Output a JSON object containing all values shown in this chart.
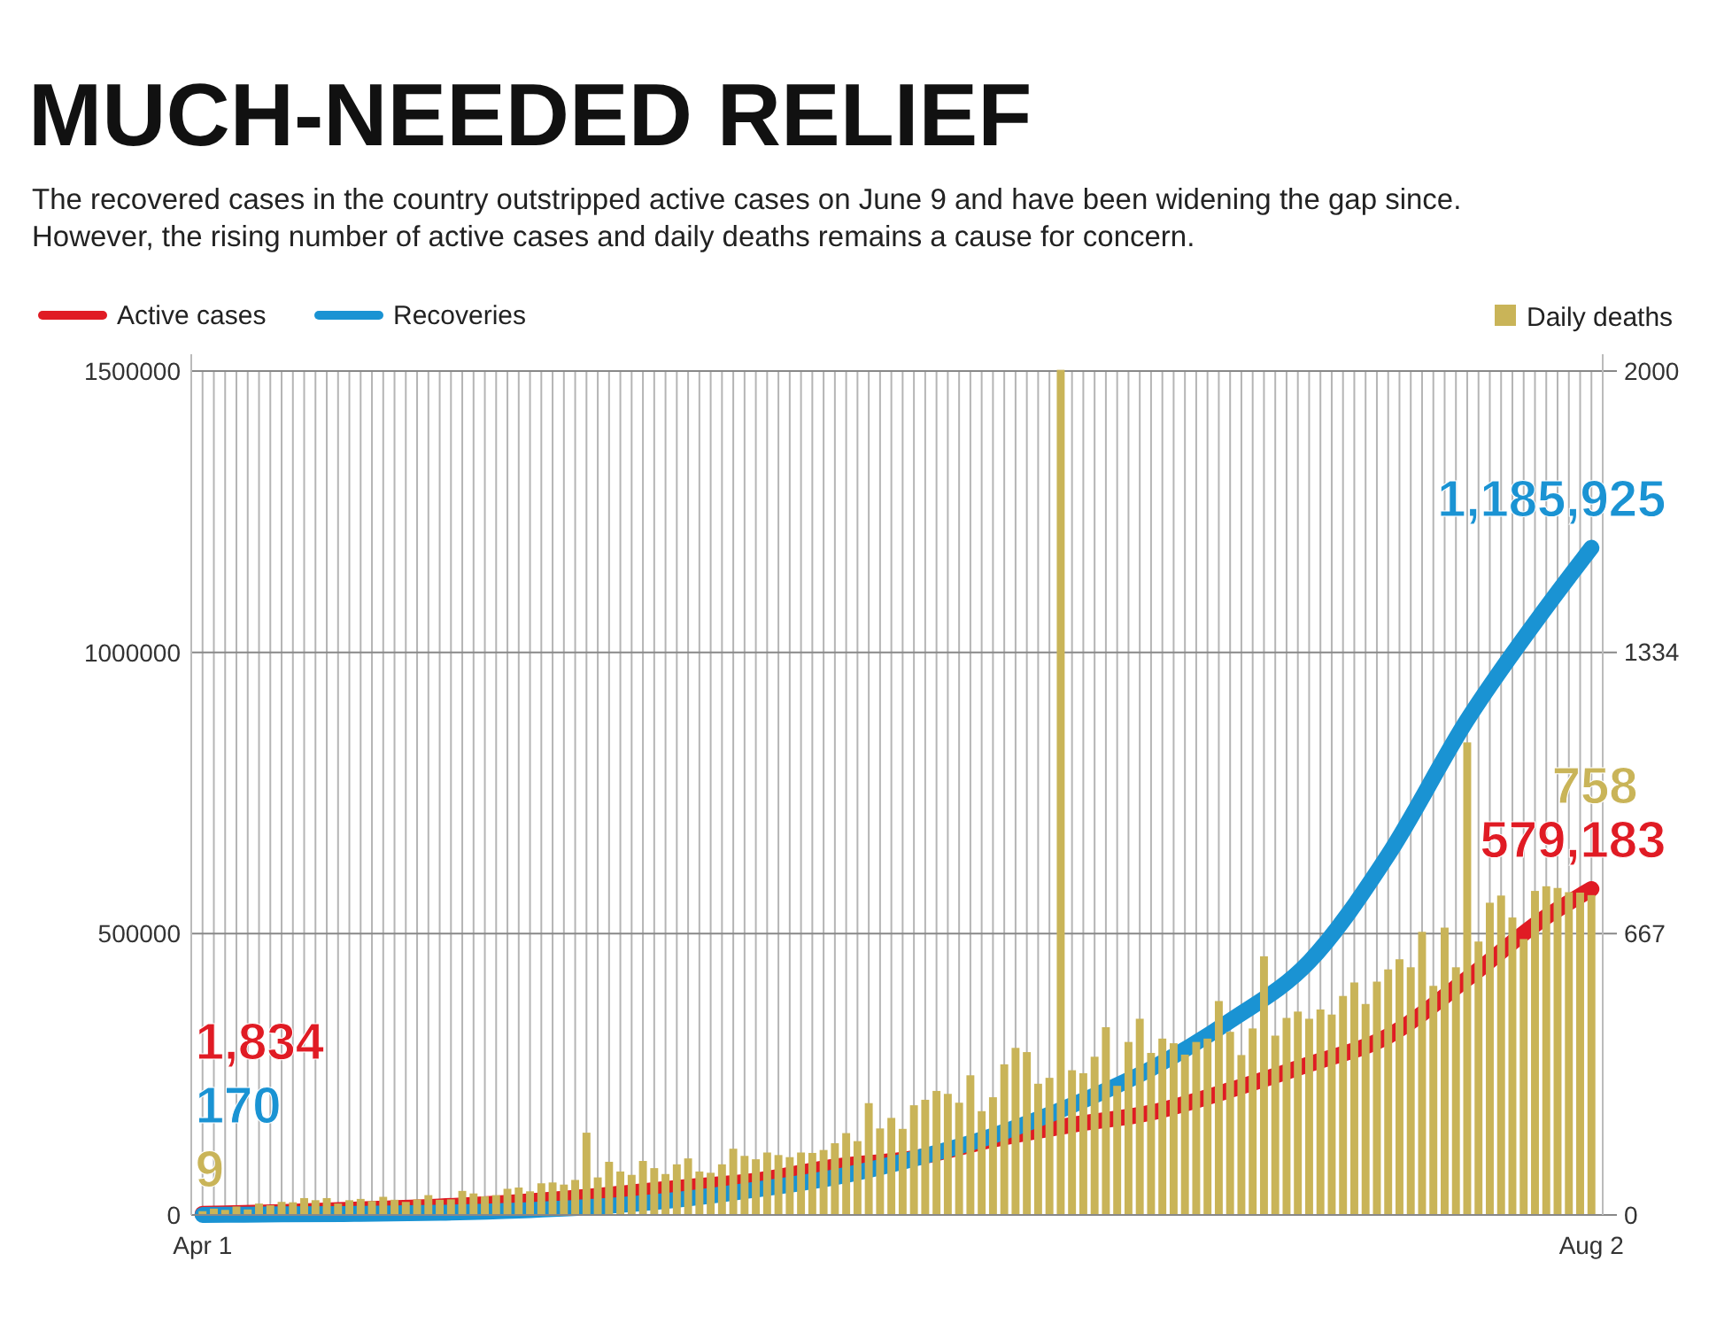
{
  "chart_data": {
    "type": "line",
    "title": "MUCH-NEEDED RELIEF",
    "subtitle": "The recovered cases in the country outstripped active cases on June 9 and have been widening the gap since. However, the rising number of active cases and daily deaths remains a cause for concern.",
    "xlim": [
      "--03-31",
      "--08-03"
    ],
    "xticks": [
      {
        "value": "--04-01",
        "label": "Apr 1"
      },
      {
        "value": "--08-02",
        "label": "Aug 2"
      }
    ],
    "ylim": [
      0,
      1530000
    ],
    "yticks": [
      0,
      500000,
      1000000,
      1500000
    ],
    "y2lim": [
      0,
      2040
    ],
    "y2ticks": [
      0,
      667,
      1334,
      2000
    ],
    "grid": true,
    "legend": "top",
    "series": [
      {
        "name": "Active cases",
        "color": "#e01b24",
        "x": [
          "--04-01",
          "--04-08",
          "--04-15",
          "--04-22",
          "--04-29",
          "--05-06",
          "--05-13",
          "--05-20",
          "--05-27",
          "--06-03",
          "--06-10",
          "--06-17",
          "--06-24",
          "--07-01",
          "--07-08",
          "--07-15",
          "--07-22",
          "--07-29",
          "--08-02"
        ],
        "values": [
          1834,
          5000,
          10000,
          15000,
          23000,
          34000,
          48000,
          61000,
          86000,
          101000,
          134000,
          160000,
          182000,
          222000,
          268000,
          318000,
          420000,
          530000,
          579183
        ],
        "value_labels": [
          "1,834",
          null,
          null,
          null,
          null,
          null,
          null,
          null,
          null,
          null,
          null,
          null,
          null,
          null,
          null,
          null,
          null,
          null,
          "579,183"
        ]
      },
      {
        "name": "Recoveries",
        "color": "#1a93d3",
        "x": [
          "--04-01",
          "--04-08",
          "--04-15",
          "--04-22",
          "--04-29",
          "--05-06",
          "--05-13",
          "--05-20",
          "--05-27",
          "--06-03",
          "--06-10",
          "--06-17",
          "--06-24",
          "--07-01",
          "--07-08",
          "--07-15",
          "--07-22",
          "--07-29",
          "--08-02"
        ],
        "values": [
          170,
          1000,
          2000,
          4000,
          8000,
          15000,
          27000,
          45000,
          67000,
          100000,
          141000,
          195000,
          260000,
          345000,
          450000,
          640000,
          880000,
          1080000,
          1185925
        ],
        "value_labels": [
          "170",
          null,
          null,
          null,
          null,
          null,
          null,
          null,
          null,
          null,
          null,
          null,
          null,
          null,
          null,
          null,
          null,
          null,
          "1,185,925"
        ]
      },
      {
        "name": "Daily deaths",
        "type": "bar",
        "axis": "y2",
        "color": "#c9b458",
        "x": [
          "--04-01",
          "--04-02",
          "--04-03",
          "--04-04",
          "--04-05",
          "--04-06",
          "--04-07",
          "--04-08",
          "--04-09",
          "--04-10",
          "--04-11",
          "--04-12",
          "--04-13",
          "--04-14",
          "--04-15",
          "--04-16",
          "--04-17",
          "--04-18",
          "--04-19",
          "--04-20",
          "--04-21",
          "--04-22",
          "--04-23",
          "--04-24",
          "--04-25",
          "--04-26",
          "--04-27",
          "--04-28",
          "--04-29",
          "--04-30",
          "--05-01",
          "--05-02",
          "--05-03",
          "--05-04",
          "--05-05",
          "--05-06",
          "--05-07",
          "--05-08",
          "--05-09",
          "--05-10",
          "--05-11",
          "--05-12",
          "--05-13",
          "--05-14",
          "--05-15",
          "--05-16",
          "--05-17",
          "--05-18",
          "--05-19",
          "--05-20",
          "--05-21",
          "--05-22",
          "--05-23",
          "--05-24",
          "--05-25",
          "--05-26",
          "--05-27",
          "--05-28",
          "--05-29",
          "--05-30",
          "--05-31",
          "--06-01",
          "--06-02",
          "--06-03",
          "--06-04",
          "--06-05",
          "--06-06",
          "--06-07",
          "--06-08",
          "--06-09",
          "--06-10",
          "--06-11",
          "--06-12",
          "--06-13",
          "--06-14",
          "--06-15",
          "--06-16",
          "--06-17",
          "--06-18",
          "--06-19",
          "--06-20",
          "--06-21",
          "--06-22",
          "--06-23",
          "--06-24",
          "--06-25",
          "--06-26",
          "--06-27",
          "--06-28",
          "--06-29",
          "--06-30",
          "--07-01",
          "--07-02",
          "--07-03",
          "--07-04",
          "--07-05",
          "--07-06",
          "--07-07",
          "--07-08",
          "--07-09",
          "--07-10",
          "--07-11",
          "--07-12",
          "--07-13",
          "--07-14",
          "--07-15",
          "--07-16",
          "--07-17",
          "--07-18",
          "--07-19",
          "--07-20",
          "--07-21",
          "--07-22",
          "--07-23",
          "--07-24",
          "--07-25",
          "--07-26",
          "--07-27",
          "--07-28",
          "--07-29",
          "--07-30",
          "--07-31",
          "--08-01",
          "--08-02"
        ],
        "values": [
          9,
          15,
          12,
          20,
          13,
          27,
          23,
          31,
          30,
          40,
          35,
          40,
          27,
          35,
          38,
          33,
          43,
          36,
          31,
          37,
          47,
          36,
          37,
          57,
          51,
          44,
          47,
          62,
          65,
          56,
          75,
          77,
          72,
          83,
          195,
          89,
          126,
          103,
          95,
          128,
          111,
          97,
          120,
          134,
          103,
          100,
          120,
          157,
          140,
          132,
          148,
          142,
          137,
          148,
          147,
          154,
          170,
          194,
          175,
          265,
          205,
          230,
          204,
          260,
          273,
          294,
          287,
          266,
          331,
          246,
          279,
          357,
          396,
          386,
          311,
          325,
          2003,
          343,
          336,
          375,
          445,
          306,
          410,
          465,
          384,
          418,
          407,
          380,
          410,
          418,
          507,
          434,
          379,
          442,
          613,
          425,
          467,
          482,
          465,
          487,
          475,
          519,
          551,
          500,
          553,
          582,
          606,
          587,
          671,
          543,
          681,
          587,
          1120,
          648,
          740,
          757,
          705,
          654,
          768,
          779,
          775,
          765,
          764,
          758
        ],
        "value_labels": [
          "9",
          null,
          null,
          null,
          null,
          null,
          null,
          null,
          null,
          null,
          null,
          null,
          null,
          null,
          null,
          null,
          null,
          null,
          null,
          null,
          null,
          null,
          null,
          null,
          null,
          null,
          null,
          null,
          null,
          null,
          null,
          null,
          null,
          null,
          null,
          null,
          null,
          null,
          null,
          null,
          null,
          null,
          null,
          null,
          null,
          null,
          null,
          null,
          null,
          null,
          null,
          null,
          null,
          null,
          null,
          null,
          null,
          null,
          null,
          null,
          null,
          null,
          null,
          null,
          null,
          null,
          null,
          null,
          null,
          null,
          null,
          null,
          null,
          null,
          null,
          null,
          null,
          null,
          null,
          null,
          null,
          null,
          null,
          null,
          null,
          null,
          null,
          null,
          null,
          null,
          null,
          null,
          null,
          null,
          null,
          null,
          null,
          null,
          null,
          null,
          null,
          null,
          null,
          null,
          null,
          null,
          null,
          null,
          null,
          null,
          null,
          null,
          null,
          null,
          null,
          null,
          null,
          null,
          null,
          null,
          null,
          null,
          null,
          "758"
        ]
      }
    ]
  }
}
